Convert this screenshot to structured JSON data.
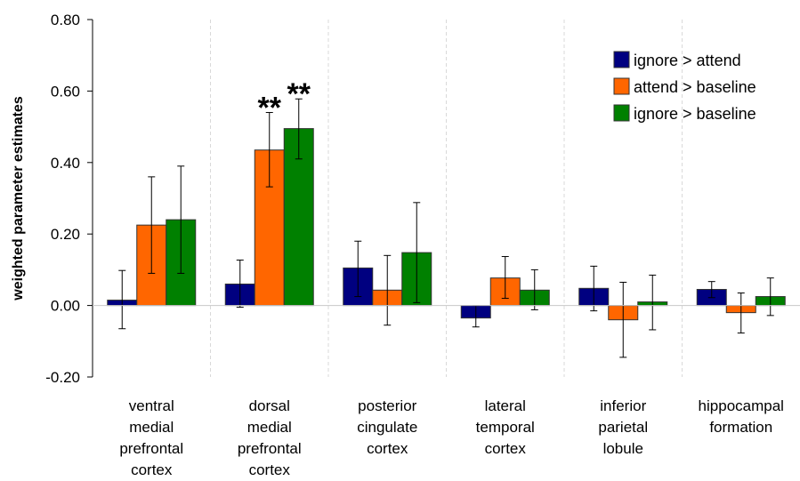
{
  "chart_data": {
    "type": "bar",
    "ylabel": "weighted parameter estimates",
    "ylim": [
      -0.2,
      0.8
    ],
    "yticks": [
      "-0.20",
      "0.00",
      "0.20",
      "0.40",
      "0.60",
      "0.80"
    ],
    "grid": "dashed vertical",
    "legend_position": "top-right",
    "categories": [
      [
        "ventral",
        "medial",
        "prefrontal",
        "cortex"
      ],
      [
        "dorsal",
        "medial",
        "prefrontal",
        "cortex"
      ],
      [
        "posterior",
        "cingulate",
        "cortex"
      ],
      [
        "lateral",
        "temporal",
        "cortex"
      ],
      [
        "inferior",
        "parietal",
        "lobule"
      ],
      [
        "hippocampal",
        "formation"
      ]
    ],
    "series": [
      {
        "name": "ignore > attend",
        "color": "#000080",
        "values": [
          0.015,
          0.06,
          0.105,
          -0.035,
          0.048,
          0.045
        ],
        "err_low": [
          -0.065,
          -0.005,
          0.025,
          -0.06,
          -0.015,
          0.022
        ],
        "err_high": [
          0.098,
          0.127,
          0.18,
          0.0,
          0.11,
          0.067
        ]
      },
      {
        "name": "attend > baseline",
        "color": "#ff6600",
        "values": [
          0.225,
          0.435,
          0.043,
          0.077,
          -0.04,
          -0.02
        ],
        "err_low": [
          0.09,
          0.332,
          -0.055,
          0.02,
          -0.145,
          -0.077
        ],
        "err_high": [
          0.36,
          0.54,
          0.14,
          0.137,
          0.065,
          0.035
        ]
      },
      {
        "name": "ignore > baseline",
        "color": "#008000",
        "values": [
          0.24,
          0.495,
          0.148,
          0.043,
          0.01,
          0.025
        ],
        "err_low": [
          0.09,
          0.41,
          0.008,
          -0.012,
          -0.068,
          -0.028
        ],
        "err_high": [
          0.39,
          0.578,
          0.288,
          0.1,
          0.085,
          0.077
        ]
      }
    ],
    "annotations": [
      {
        "text": "**",
        "category": 1,
        "series": 1
      },
      {
        "text": "**",
        "category": 1,
        "series": 2
      }
    ]
  }
}
